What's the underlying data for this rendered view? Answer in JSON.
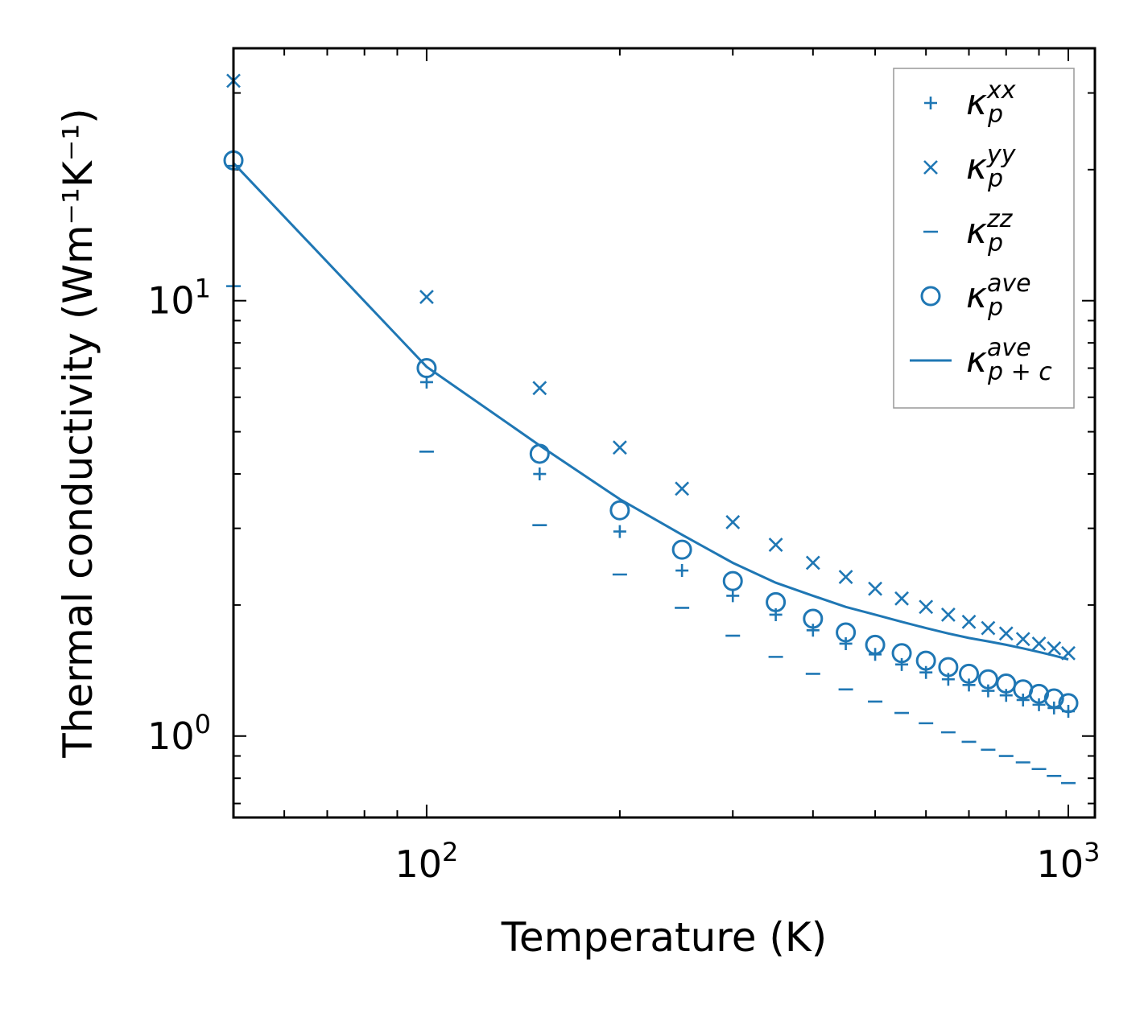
{
  "colors": {
    "series": "#1f77b4",
    "axis": "#000000",
    "legend_border": "#999999"
  },
  "chart_data": {
    "type": "scatter",
    "xscale": "log",
    "yscale": "log",
    "xlim": [
      50,
      1100
    ],
    "ylim": [
      0.65,
      38
    ],
    "xlabel": "Temperature (K)",
    "ylabel": "Thermal conductivity (Wm⁻¹K⁻¹)",
    "x_ticks": [
      {
        "value": 100,
        "base": "10",
        "exp": "2"
      },
      {
        "value": 1000,
        "base": "10",
        "exp": "3"
      }
    ],
    "y_ticks": [
      {
        "value": 1,
        "base": "10",
        "exp": "0"
      },
      {
        "value": 10,
        "base": "10",
        "exp": "1"
      }
    ],
    "x": [
      50,
      100,
      150,
      200,
      250,
      300,
      350,
      400,
      450,
      500,
      550,
      600,
      650,
      700,
      750,
      800,
      850,
      900,
      950,
      1000
    ],
    "series": [
      {
        "name": "kappa_p_xx",
        "label": "κ",
        "sub": "p",
        "sup": "xx",
        "marker": "plus",
        "values": [
          20.4,
          6.5,
          4.0,
          2.95,
          2.4,
          2.1,
          1.9,
          1.75,
          1.63,
          1.54,
          1.46,
          1.4,
          1.35,
          1.31,
          1.27,
          1.24,
          1.21,
          1.18,
          1.16,
          1.14
        ]
      },
      {
        "name": "kappa_p_yy",
        "label": "κ",
        "sub": "p",
        "sup": "yy",
        "marker": "x",
        "values": [
          32.0,
          10.2,
          6.3,
          4.6,
          3.7,
          3.1,
          2.75,
          2.5,
          2.32,
          2.18,
          2.07,
          1.98,
          1.9,
          1.83,
          1.77,
          1.72,
          1.67,
          1.63,
          1.59,
          1.55
        ]
      },
      {
        "name": "kappa_p_zz",
        "label": "κ",
        "sub": "p",
        "sup": "zz",
        "marker": "dash",
        "values": [
          10.8,
          4.5,
          3.05,
          2.35,
          1.97,
          1.7,
          1.52,
          1.39,
          1.28,
          1.2,
          1.13,
          1.07,
          1.02,
          0.97,
          0.93,
          0.9,
          0.87,
          0.84,
          0.81,
          0.78
        ]
      },
      {
        "name": "kappa_p_ave",
        "label": "κ",
        "sub": "p",
        "sup": "ave",
        "marker": "circle",
        "values": [
          21.0,
          7.0,
          4.45,
          3.3,
          2.68,
          2.27,
          2.03,
          1.86,
          1.73,
          1.62,
          1.55,
          1.49,
          1.44,
          1.39,
          1.35,
          1.32,
          1.28,
          1.25,
          1.22,
          1.19
        ]
      },
      {
        "name": "kappa_pc_ave",
        "label": "κ",
        "sub": "p + c",
        "sup": "ave",
        "marker": "line",
        "values": [
          20.7,
          7.05,
          4.65,
          3.5,
          2.9,
          2.5,
          2.25,
          2.1,
          1.98,
          1.9,
          1.83,
          1.77,
          1.72,
          1.68,
          1.65,
          1.62,
          1.59,
          1.56,
          1.53,
          1.5
        ]
      }
    ],
    "legend": {
      "position": "top-right"
    }
  }
}
